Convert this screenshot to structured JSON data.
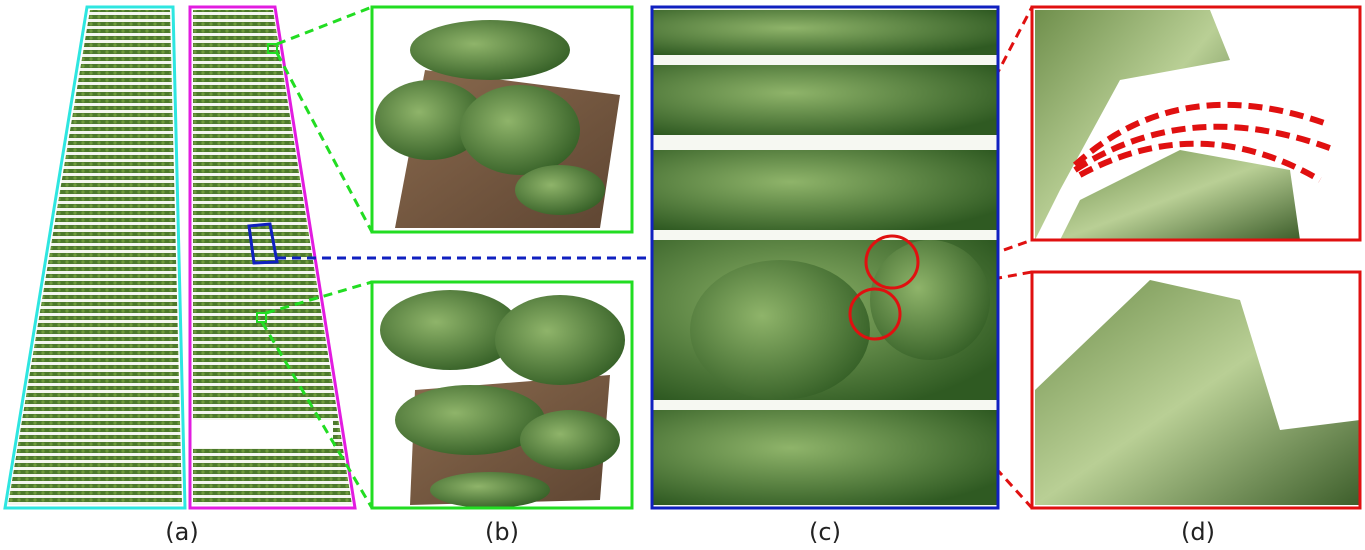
{
  "labels": [
    "(a)",
    "(b)",
    "(c)",
    "(d)"
  ]
}
